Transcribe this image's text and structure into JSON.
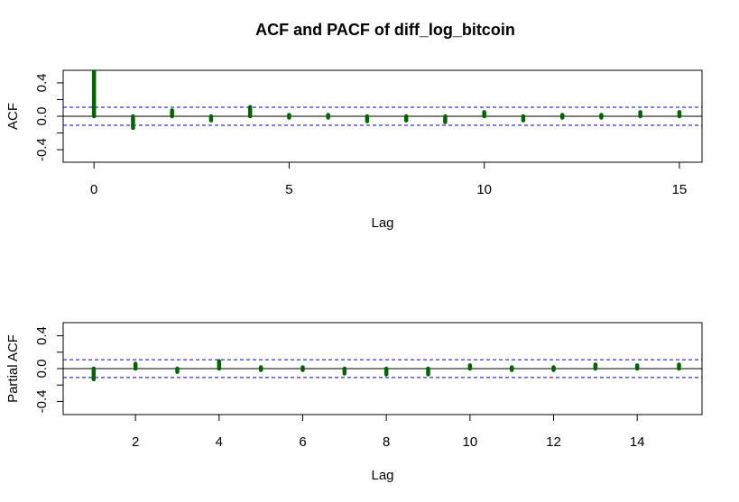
{
  "chart_data": [
    {
      "type": "acf",
      "title": "ACF and PACF of diff_log_bitcoin",
      "xlabel": "Lag",
      "ylabel": "ACF",
      "x": [
        0,
        1,
        2,
        3,
        4,
        5,
        6,
        7,
        8,
        9,
        10,
        11,
        12,
        13,
        14,
        15
      ],
      "values": [
        1.0,
        -0.14,
        0.07,
        -0.05,
        0.11,
        -0.03,
        0.01,
        -0.06,
        -0.05,
        -0.07,
        0.05,
        -0.05,
        0.01,
        0.03,
        0.05,
        0.05
      ],
      "color": "#006400",
      "ci": 0.108,
      "ci_color": "#0000cc",
      "xlim": [
        -0.79,
        15.58
      ],
      "xticks": [
        0,
        5,
        10,
        15
      ],
      "ylim": [
        -0.55,
        0.55
      ],
      "yticks": [
        -0.4,
        {
          "value": -0.2,
          "label": null
        },
        {
          "value": 0,
          "label": "0.0"
        },
        {
          "value": 0.2,
          "label": null
        },
        0.4
      ]
    },
    {
      "type": "acf",
      "xlabel": "Lag",
      "ylabel": "Partial ACF",
      "x": [
        1,
        2,
        3,
        4,
        5,
        6,
        7,
        8,
        9,
        10,
        11,
        12,
        13,
        14,
        15
      ],
      "values": [
        -0.13,
        0.06,
        -0.04,
        0.09,
        0.01,
        0.01,
        -0.06,
        -0.07,
        -0.07,
        0.04,
        -0.03,
        0.01,
        0.05,
        0.04,
        0.05
      ],
      "color": "#006400",
      "ci": 0.108,
      "ci_color": "#0000cc",
      "xlim": [
        0.27,
        15.55
      ],
      "xticks": [
        2,
        4,
        6,
        8,
        10,
        12,
        14
      ],
      "ylim": [
        -0.56,
        0.56
      ],
      "yticks": [
        -0.4,
        {
          "value": -0.2,
          "label": null
        },
        {
          "value": 0,
          "label": "0.0"
        },
        {
          "value": 0.2,
          "label": null
        },
        0.4
      ]
    }
  ]
}
